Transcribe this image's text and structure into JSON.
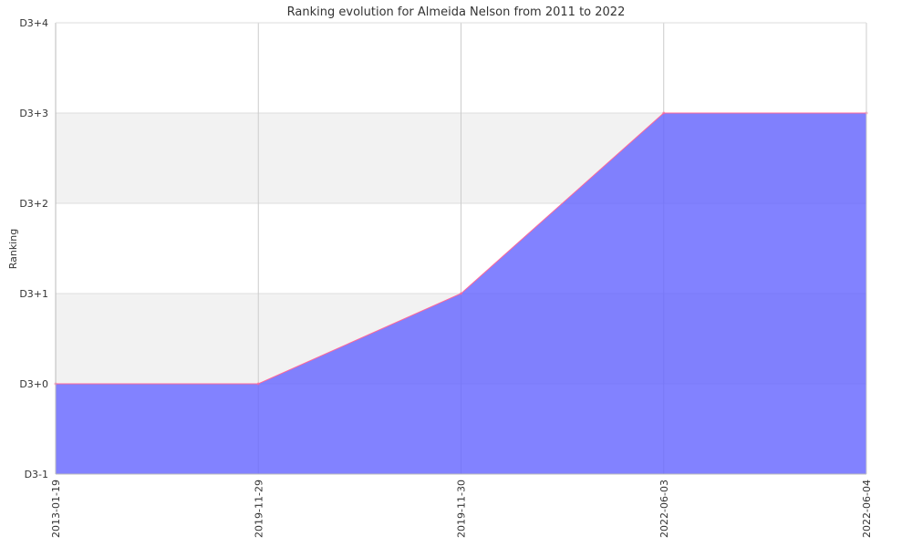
{
  "chart_data": {
    "type": "area",
    "title": "Ranking evolution for Almeida Nelson from 2011 to 2022",
    "xlabel": "",
    "ylabel": "Ranking",
    "x": [
      "2013-01-19",
      "2019-11-29",
      "2019-11-30",
      "2022-06-03",
      "2022-06-04"
    ],
    "y_tick_labels": [
      "D3-1",
      "D3+0",
      "D3+1",
      "D3+2",
      "D3+3",
      "D3+4"
    ],
    "ylim": [
      -1,
      4
    ],
    "series": [
      {
        "values": [
          0,
          0,
          1,
          3,
          3
        ]
      }
    ],
    "grid": true,
    "legend": "none",
    "colors": {
      "fill": "#6666ff",
      "line": "#ff6699",
      "band": "#f2f2f2",
      "grid": "#cccccc",
      "axis": "#bbbbbb"
    }
  }
}
